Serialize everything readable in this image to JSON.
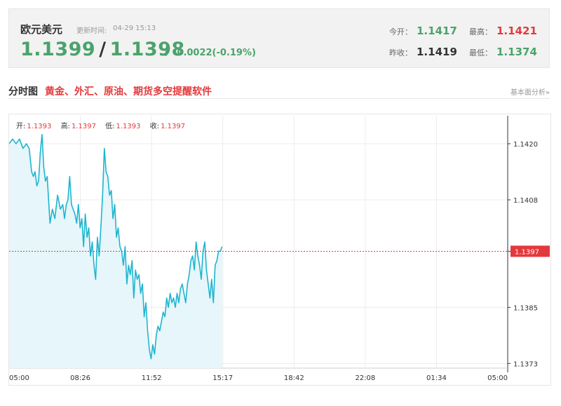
{
  "header": {
    "pair_name": "欧元美元",
    "update_label": "更新时间:",
    "update_time": "04-29 15:13",
    "bid": "1.1399",
    "separator": "/",
    "ask": "1.1398",
    "arrow": "↓",
    "change": "-0.0022(-0.19%)",
    "stats": {
      "open_label": "今开：",
      "open": "1.1417",
      "high_label": "最高：",
      "high": "1.1421",
      "prev_close_label": "昨收：",
      "prev_close": "1.1419",
      "low_label": "最低：",
      "low": "1.1374"
    }
  },
  "section": {
    "title": "分时图",
    "promo_link": "黄金、外汇、原油、期货多空提醒软件",
    "right_link": "基本面分析»"
  },
  "chart_meta": {
    "open_label": "开:",
    "open": "1.1393",
    "high_label": "高:",
    "high": "1.1397",
    "low_label": "低:",
    "low": "1.1393",
    "close_label": "收:",
    "close": "1.1397",
    "current_price_tag": "1.1397"
  },
  "colors": {
    "up": "#e4393c",
    "down": "#4aa36b",
    "line": "#1fb5cf",
    "area": "#e6f6fa"
  },
  "chart_data": {
    "type": "area",
    "x_ticks": [
      "05:00",
      "08:26",
      "11:52",
      "15:17",
      "18:42",
      "22:08",
      "01:34",
      "05:00"
    ],
    "y_ticks": [
      1.142,
      1.1408,
      1.1397,
      1.1385,
      1.1373
    ],
    "ylim": [
      1.1372,
      1.1426
    ],
    "reference_price": 1.1397,
    "x_range_minutes": [
      0,
      1440
    ],
    "series": [
      {
        "x_minutes": [
          0,
          10,
          20,
          30,
          40,
          50,
          58,
          65,
          70,
          75,
          80,
          85,
          90,
          95,
          100,
          105,
          110,
          118,
          125,
          132,
          140,
          148,
          155,
          160,
          165,
          170,
          175,
          180,
          185,
          190,
          195,
          200,
          205,
          210,
          215,
          220,
          225,
          230,
          235,
          240,
          245,
          250,
          255,
          260,
          265,
          270,
          275,
          280,
          285,
          290,
          295,
          300,
          305,
          310,
          315,
          320,
          325,
          330,
          335,
          340,
          345,
          350,
          355,
          360,
          365,
          370,
          375,
          380,
          385,
          390,
          395,
          400,
          405,
          410,
          415,
          420,
          425,
          430,
          435,
          440,
          445,
          450,
          455,
          460,
          465,
          470,
          475,
          480,
          485,
          490,
          495,
          500,
          505,
          510,
          515,
          520,
          525,
          530,
          535,
          540,
          545,
          550,
          555,
          560,
          565,
          570,
          575,
          580,
          585,
          590,
          595,
          600,
          605,
          610,
          615
        ],
        "values": [
          1.142,
          1.1421,
          1.142,
          1.1421,
          1.1419,
          1.142,
          1.1419,
          1.1414,
          1.1413,
          1.1414,
          1.1411,
          1.1412,
          1.1418,
          1.1422,
          1.1415,
          1.1412,
          1.1413,
          1.1403,
          1.1406,
          1.1404,
          1.1409,
          1.1406,
          1.1407,
          1.1404,
          1.1407,
          1.1408,
          1.1413,
          1.1407,
          1.1406,
          1.1405,
          1.1403,
          1.1407,
          1.1402,
          1.1404,
          1.1398,
          1.1405,
          1.14,
          1.1402,
          1.1396,
          1.1399,
          1.1394,
          1.1391,
          1.14,
          1.1396,
          1.1402,
          1.1409,
          1.1419,
          1.1414,
          1.1413,
          1.1409,
          1.141,
          1.1404,
          1.1407,
          1.14,
          1.1402,
          1.1398,
          1.1397,
          1.1394,
          1.1398,
          1.139,
          1.1394,
          1.1392,
          1.1395,
          1.1387,
          1.1393,
          1.1391,
          1.1392,
          1.1388,
          1.139,
          1.1383,
          1.1386,
          1.138,
          1.1376,
          1.1374,
          1.1377,
          1.1375,
          1.1379,
          1.1381,
          1.138,
          1.1382,
          1.1384,
          1.1383,
          1.1387,
          1.1385,
          1.1388,
          1.1386,
          1.1387,
          1.1385,
          1.1388,
          1.1386,
          1.1389,
          1.139,
          1.1388,
          1.1386,
          1.139,
          1.1392,
          1.1395,
          1.1396,
          1.1393,
          1.1399,
          1.1396,
          1.1394,
          1.1391,
          1.1397,
          1.1399,
          1.1393,
          1.139,
          1.1387,
          1.1391,
          1.1386,
          1.1394,
          1.1395,
          1.1397,
          1.1397,
          1.1398
        ]
      }
    ]
  }
}
